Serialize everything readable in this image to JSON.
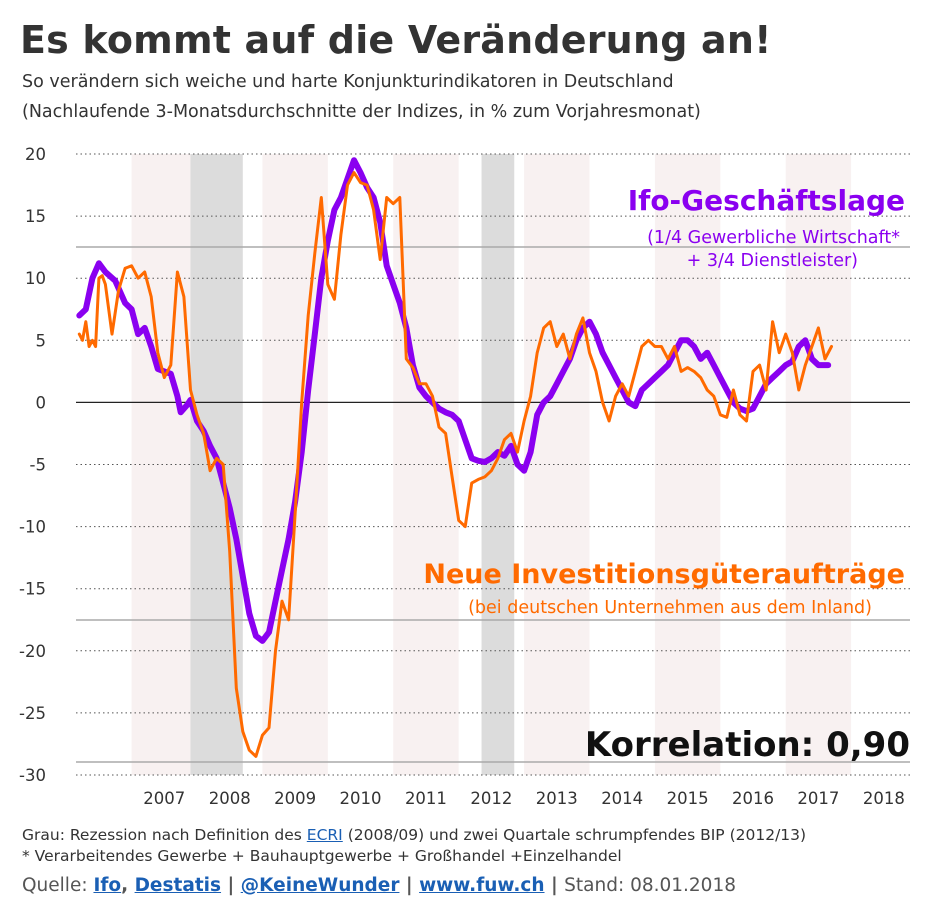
{
  "title": "Es kommt auf die Veränderung an!",
  "subtitle_line1": "So verändern sich weiche und harte Konjunkturindikatoren in Deutschland",
  "subtitle_line2": "(Nachlaufende 3-Monatsdurchschnitte der Indizes, in % zum Vorjahresmonat)",
  "chart_data": {
    "type": "line",
    "ylim": [
      -30,
      20
    ],
    "yticks": [
      20,
      15,
      10,
      5,
      0,
      -5,
      -10,
      -15,
      -20,
      -25,
      -30
    ],
    "xlim": [
      2005.95,
      2018.7
    ],
    "xticks": [
      2007,
      2008,
      2009,
      2010,
      2011,
      2012,
      2013,
      2014,
      2015,
      2016,
      2017,
      2018
    ],
    "grid": true,
    "shaded_recessions": [
      [
        2007.7,
        2008.5
      ],
      [
        2012.15,
        2012.65
      ]
    ],
    "annotations": {
      "ifo_label": "Ifo-Geschäftslage",
      "ifo_note1": "(1/4 Gewerbliche Wirtschaft*",
      "ifo_note2": "+ 3/4 Dienstleister)",
      "orders_label": "Neue Investitionsgüteraufträge",
      "orders_note": "(bei deutschen Unternehmen aus dem Inland)",
      "correlation": "Korrelation: 0,90"
    },
    "colors": {
      "ifo": "#8a00f0",
      "orders": "#ff6a00",
      "recession": "#dcdcdc",
      "band": "#f8f1f1"
    },
    "series": [
      {
        "name": "Ifo-Geschäftslage",
        "color": "#8a00f0",
        "points": [
          [
            2006.0,
            7
          ],
          [
            2006.1,
            7.5
          ],
          [
            2006.2,
            10
          ],
          [
            2006.3,
            11.2
          ],
          [
            2006.4,
            10.5
          ],
          [
            2006.55,
            9.8
          ],
          [
            2006.7,
            8
          ],
          [
            2006.8,
            7.5
          ],
          [
            2006.9,
            5.5
          ],
          [
            2007.0,
            6
          ],
          [
            2007.1,
            4.5
          ],
          [
            2007.2,
            2.7
          ],
          [
            2007.3,
            2.5
          ],
          [
            2007.4,
            2.3
          ],
          [
            2007.5,
            0.5
          ],
          [
            2007.55,
            -0.8
          ],
          [
            2007.65,
            -0.2
          ],
          [
            2007.7,
            0.2
          ],
          [
            2007.8,
            -1.5
          ],
          [
            2007.9,
            -2.3
          ],
          [
            2008.0,
            -3.5
          ],
          [
            2008.1,
            -4.5
          ],
          [
            2008.2,
            -6.5
          ],
          [
            2008.3,
            -8.5
          ],
          [
            2008.4,
            -11
          ],
          [
            2008.5,
            -14
          ],
          [
            2008.6,
            -17
          ],
          [
            2008.7,
            -18.8
          ],
          [
            2008.8,
            -19.2
          ],
          [
            2008.9,
            -18.5
          ],
          [
            2009.0,
            -16
          ],
          [
            2009.1,
            -13.5
          ],
          [
            2009.2,
            -11
          ],
          [
            2009.3,
            -8
          ],
          [
            2009.4,
            -4
          ],
          [
            2009.5,
            1
          ],
          [
            2009.6,
            5.5
          ],
          [
            2009.7,
            10
          ],
          [
            2009.8,
            13
          ],
          [
            2009.9,
            15.5
          ],
          [
            2010.0,
            16.5
          ],
          [
            2010.1,
            18
          ],
          [
            2010.2,
            19.5
          ],
          [
            2010.3,
            18.5
          ],
          [
            2010.4,
            17.3
          ],
          [
            2010.5,
            16.5
          ],
          [
            2010.6,
            14.5
          ],
          [
            2010.7,
            11
          ],
          [
            2010.8,
            9.5
          ],
          [
            2010.9,
            8
          ],
          [
            2011.0,
            6
          ],
          [
            2011.1,
            3
          ],
          [
            2011.2,
            1.2
          ],
          [
            2011.3,
            0.5
          ],
          [
            2011.4,
            0
          ],
          [
            2011.5,
            -0.5
          ],
          [
            2011.6,
            -0.8
          ],
          [
            2011.7,
            -1
          ],
          [
            2011.8,
            -1.5
          ],
          [
            2011.9,
            -3
          ],
          [
            2012.0,
            -4.5
          ],
          [
            2012.1,
            -4.7
          ],
          [
            2012.2,
            -4.8
          ],
          [
            2012.3,
            -4.5
          ],
          [
            2012.4,
            -4
          ],
          [
            2012.5,
            -4.3
          ],
          [
            2012.6,
            -3.5
          ],
          [
            2012.7,
            -5
          ],
          [
            2012.8,
            -5.5
          ],
          [
            2012.9,
            -4
          ],
          [
            2013.0,
            -1
          ],
          [
            2013.1,
            0
          ],
          [
            2013.2,
            0.5
          ],
          [
            2013.3,
            1.5
          ],
          [
            2013.4,
            2.5
          ],
          [
            2013.5,
            3.5
          ],
          [
            2013.6,
            5
          ],
          [
            2013.7,
            6
          ],
          [
            2013.8,
            6.5
          ],
          [
            2013.9,
            5.5
          ],
          [
            2014.0,
            4
          ],
          [
            2014.1,
            3
          ],
          [
            2014.2,
            2
          ],
          [
            2014.3,
            1
          ],
          [
            2014.4,
            0
          ],
          [
            2014.5,
            -0.3
          ],
          [
            2014.6,
            1
          ],
          [
            2014.7,
            1.5
          ],
          [
            2014.8,
            2
          ],
          [
            2014.9,
            2.5
          ],
          [
            2015.0,
            3
          ],
          [
            2015.1,
            4
          ],
          [
            2015.2,
            5
          ],
          [
            2015.3,
            5
          ],
          [
            2015.4,
            4.5
          ],
          [
            2015.5,
            3.5
          ],
          [
            2015.6,
            4
          ],
          [
            2015.7,
            3
          ],
          [
            2015.8,
            2
          ],
          [
            2015.9,
            1
          ],
          [
            2016.0,
            0
          ],
          [
            2016.1,
            -0.5
          ],
          [
            2016.2,
            -0.7
          ],
          [
            2016.3,
            -0.5
          ],
          [
            2016.4,
            0.5
          ],
          [
            2016.5,
            1.5
          ],
          [
            2016.6,
            2
          ],
          [
            2016.7,
            2.5
          ],
          [
            2016.8,
            3
          ],
          [
            2016.9,
            3.3
          ],
          [
            2017.0,
            4.5
          ],
          [
            2017.1,
            5
          ],
          [
            2017.2,
            3.5
          ],
          [
            2017.3,
            3
          ],
          [
            2017.45,
            3
          ]
        ]
      },
      {
        "name": "Neue Investitionsgüteraufträge",
        "color": "#ff6a00",
        "points": [
          [
            2006.0,
            5.5
          ],
          [
            2006.05,
            5
          ],
          [
            2006.1,
            6.5
          ],
          [
            2006.15,
            4.5
          ],
          [
            2006.2,
            5
          ],
          [
            2006.25,
            4.5
          ],
          [
            2006.3,
            10
          ],
          [
            2006.35,
            10.2
          ],
          [
            2006.4,
            9.5
          ],
          [
            2006.5,
            5.5
          ],
          [
            2006.6,
            9
          ],
          [
            2006.7,
            10.8
          ],
          [
            2006.8,
            11
          ],
          [
            2006.9,
            10
          ],
          [
            2007.0,
            10.5
          ],
          [
            2007.1,
            8.5
          ],
          [
            2007.2,
            4
          ],
          [
            2007.3,
            2
          ],
          [
            2007.4,
            3
          ],
          [
            2007.5,
            10.5
          ],
          [
            2007.6,
            8.5
          ],
          [
            2007.7,
            1
          ],
          [
            2007.8,
            -1
          ],
          [
            2007.9,
            -2.5
          ],
          [
            2008.0,
            -5.5
          ],
          [
            2008.1,
            -4.5
          ],
          [
            2008.2,
            -5
          ],
          [
            2008.3,
            -12
          ],
          [
            2008.4,
            -23
          ],
          [
            2008.5,
            -26.5
          ],
          [
            2008.6,
            -28
          ],
          [
            2008.7,
            -28.5
          ],
          [
            2008.8,
            -26.8
          ],
          [
            2008.9,
            -26.2
          ],
          [
            2009.0,
            -20
          ],
          [
            2009.1,
            -16
          ],
          [
            2009.2,
            -17.5
          ],
          [
            2009.3,
            -9
          ],
          [
            2009.4,
            0
          ],
          [
            2009.5,
            7
          ],
          [
            2009.6,
            12
          ],
          [
            2009.7,
            16.5
          ],
          [
            2009.8,
            9.5
          ],
          [
            2009.9,
            8.3
          ],
          [
            2010.0,
            13.5
          ],
          [
            2010.1,
            17.5
          ],
          [
            2010.2,
            18.5
          ],
          [
            2010.3,
            17.7
          ],
          [
            2010.4,
            17.5
          ],
          [
            2010.5,
            15.5
          ],
          [
            2010.6,
            11.5
          ],
          [
            2010.7,
            16.5
          ],
          [
            2010.8,
            16
          ],
          [
            2010.9,
            16.5
          ],
          [
            2011.0,
            3.5
          ],
          [
            2011.1,
            2.8
          ],
          [
            2011.2,
            1.5
          ],
          [
            2011.3,
            1.5
          ],
          [
            2011.4,
            0.5
          ],
          [
            2011.5,
            -2
          ],
          [
            2011.6,
            -2.5
          ],
          [
            2011.7,
            -6
          ],
          [
            2011.8,
            -9.5
          ],
          [
            2011.9,
            -10
          ],
          [
            2012.0,
            -6.5
          ],
          [
            2012.1,
            -6.2
          ],
          [
            2012.2,
            -6
          ],
          [
            2012.3,
            -5.5
          ],
          [
            2012.4,
            -4.5
          ],
          [
            2012.5,
            -3
          ],
          [
            2012.6,
            -2.5
          ],
          [
            2012.7,
            -4
          ],
          [
            2012.8,
            -1.5
          ],
          [
            2012.9,
            0.5
          ],
          [
            2013.0,
            4
          ],
          [
            2013.1,
            6
          ],
          [
            2013.2,
            6.5
          ],
          [
            2013.3,
            4.5
          ],
          [
            2013.4,
            5.5
          ],
          [
            2013.5,
            3.5
          ],
          [
            2013.6,
            5.5
          ],
          [
            2013.7,
            6.8
          ],
          [
            2013.8,
            4
          ],
          [
            2013.9,
            2.5
          ],
          [
            2014.0,
            0
          ],
          [
            2014.1,
            -1.5
          ],
          [
            2014.2,
            0.5
          ],
          [
            2014.3,
            1.5
          ],
          [
            2014.4,
            0.5
          ],
          [
            2014.5,
            2.5
          ],
          [
            2014.6,
            4.5
          ],
          [
            2014.7,
            5
          ],
          [
            2014.8,
            4.5
          ],
          [
            2014.9,
            4.5
          ],
          [
            2015.0,
            3.5
          ],
          [
            2015.1,
            4.5
          ],
          [
            2015.2,
            2.5
          ],
          [
            2015.3,
            2.8
          ],
          [
            2015.4,
            2.5
          ],
          [
            2015.5,
            2
          ],
          [
            2015.6,
            1
          ],
          [
            2015.7,
            0.5
          ],
          [
            2015.8,
            -1
          ],
          [
            2015.9,
            -1.2
          ],
          [
            2016.0,
            1
          ],
          [
            2016.1,
            -1
          ],
          [
            2016.2,
            -1.5
          ],
          [
            2016.3,
            2.5
          ],
          [
            2016.4,
            3
          ],
          [
            2016.5,
            1
          ],
          [
            2016.6,
            6.5
          ],
          [
            2016.7,
            4
          ],
          [
            2016.8,
            5.5
          ],
          [
            2016.9,
            4
          ],
          [
            2017.0,
            1
          ],
          [
            2017.1,
            3
          ],
          [
            2017.2,
            4.5
          ],
          [
            2017.3,
            6
          ],
          [
            2017.4,
            3.5
          ],
          [
            2017.5,
            4.5
          ]
        ]
      }
    ]
  },
  "footnote1": {
    "prefix": "Grau: Rezession nach Definition des ",
    "link": "ECRI",
    "suffix": " (2008/09) und zwei Quartale schrumpfendes BIP (2012/13)"
  },
  "footnote2": "* Verarbeitendes Gewerbe + Bauhauptgewerbe + Großhandel +Einzelhandel",
  "source": {
    "prefix": "Quelle: ",
    "link1": "Ifo",
    "sep1": ", ",
    "link2": "Destatis",
    "sep2": " | ",
    "link3": "@KeineWunder",
    "sep3": " | ",
    "link4": "www.fuw.ch",
    "sep4": " | ",
    "stand": "Stand: 08.01.2018"
  }
}
